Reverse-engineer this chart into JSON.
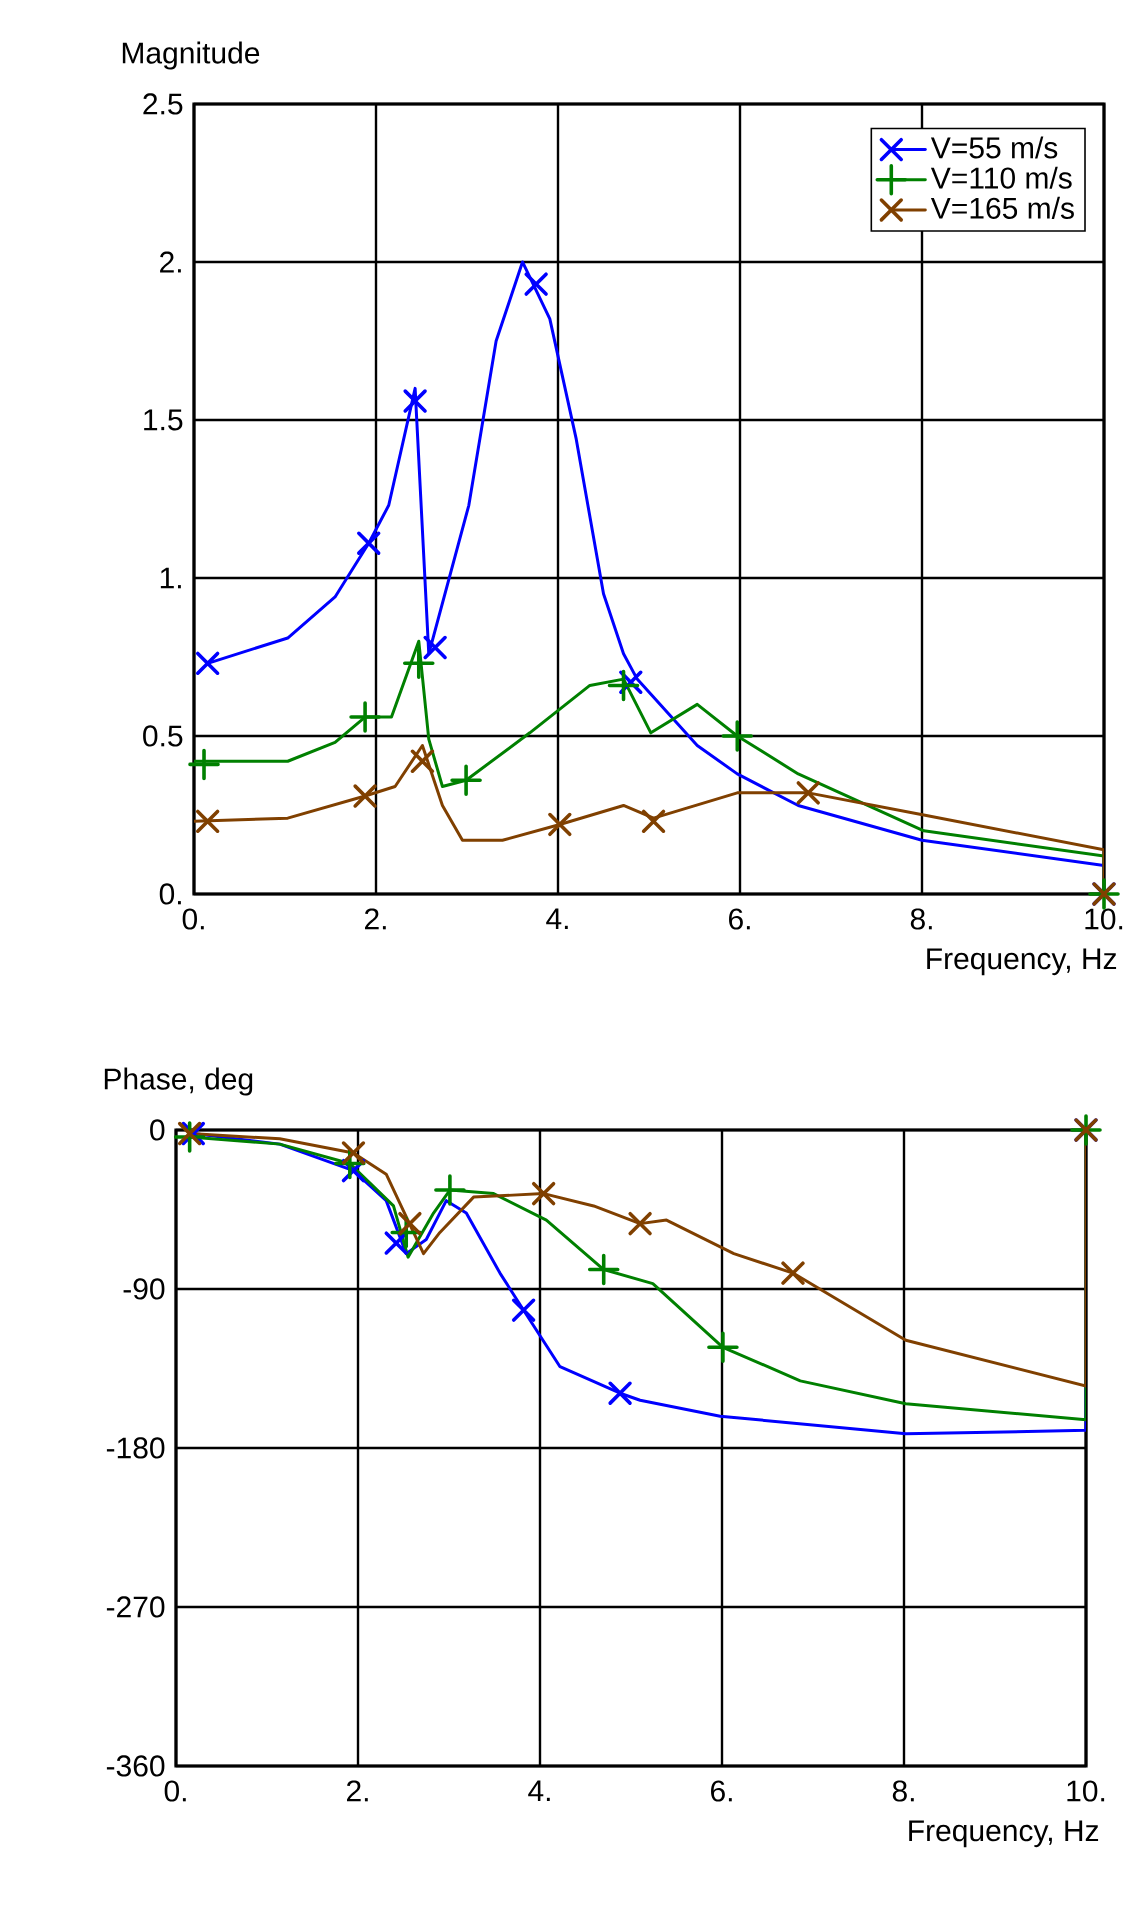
{
  "chart_data": [
    {
      "type": "line",
      "ylabel": "Magnitude",
      "xlabel": "Frequency, Hz",
      "xlim": [
        0,
        10
      ],
      "ylim": [
        0,
        2.5
      ],
      "xticks": [
        {
          "value": 0,
          "label": "0."
        },
        {
          "value": 2,
          "label": "2."
        },
        {
          "value": 4,
          "label": "4."
        },
        {
          "value": 6,
          "label": "6."
        },
        {
          "value": 8,
          "label": "8."
        },
        {
          "value": 10,
          "label": "10."
        }
      ],
      "yticks": [
        {
          "value": 0,
          "label": "0."
        },
        {
          "value": 0.5,
          "label": "0.5"
        },
        {
          "value": 1,
          "label": "1."
        },
        {
          "value": 1.5,
          "label": "1.5"
        },
        {
          "value": 2,
          "label": "2."
        },
        {
          "value": 2.5,
          "label": "2.5"
        }
      ],
      "grid": true,
      "legend": "top right",
      "series": [
        {
          "color": "#0000ff",
          "x": [
            0.15,
            1.03,
            1.55,
            1.92,
            2.14,
            2.43,
            2.58,
            3.02,
            3.32,
            3.61,
            3.91,
            4.2,
            4.5,
            4.72,
            4.87,
            5.53,
            5.97,
            6.64,
            8.0,
            10,
            10
          ],
          "values": [
            0.73,
            0.81,
            0.94,
            1.11,
            1.23,
            1.6,
            0.76,
            1.23,
            1.75,
            2.0,
            1.82,
            1.44,
            0.95,
            0.76,
            0.68,
            0.47,
            0.38,
            0.28,
            0.17,
            0.09,
            0
          ]
        },
        {
          "color": "#008000",
          "x": [
            0,
            1.03,
            1.55,
            1.88,
            2.17,
            2.47,
            2.58,
            2.73,
            2.99,
            3.69,
            4.35,
            4.72,
            5.02,
            5.53,
            5.97,
            6.64,
            8.02,
            10,
            10
          ],
          "values": [
            0.42,
            0.42,
            0.48,
            0.56,
            0.56,
            0.8,
            0.49,
            0.34,
            0.36,
            0.51,
            0.66,
            0.68,
            0.51,
            0.6,
            0.5,
            0.38,
            0.2,
            0.12,
            0
          ]
        },
        {
          "color": "#804000",
          "x": [
            0,
            1.03,
            1.88,
            2.21,
            2.51,
            2.73,
            2.95,
            3.39,
            4.02,
            4.72,
            5.05,
            5.97,
            6.75,
            8.02,
            10,
            10
          ],
          "values": [
            0.23,
            0.24,
            0.31,
            0.34,
            0.47,
            0.28,
            0.17,
            0.17,
            0.22,
            0.28,
            0.24,
            0.32,
            0.32,
            0.25,
            0.14,
            0
          ]
        },
        {
          "type": "scatter",
          "name": "V=55 m/s",
          "color": "#0000ff",
          "marker": "cross",
          "x": [
            0.15,
            1.92,
            2.43,
            2.65,
            3.76,
            4.8,
            10
          ],
          "values": [
            0.73,
            1.11,
            1.56,
            0.78,
            1.93,
            0.67,
            0
          ]
        },
        {
          "type": "scatter",
          "name": "V=110 m/s",
          "color": "#008000",
          "marker": "plus",
          "x": [
            0.11,
            1.88,
            2.47,
            2.99,
            4.72,
            5.97,
            10
          ],
          "values": [
            0.41,
            0.56,
            0.73,
            0.36,
            0.66,
            0.5,
            0
          ]
        },
        {
          "type": "scatter",
          "name": "V=165 m/s",
          "color": "#804000",
          "marker": "cross",
          "x": [
            0.15,
            1.88,
            2.51,
            4.02,
            5.05,
            6.75,
            10
          ],
          "values": [
            0.23,
            0.31,
            0.42,
            0.22,
            0.23,
            0.32,
            0
          ]
        }
      ]
    },
    {
      "type": "line",
      "ylabel": "Phase, deg",
      "xlabel": "Frequency, Hz",
      "xlim": [
        0,
        10
      ],
      "ylim": [
        -360,
        0
      ],
      "xticks": [
        {
          "value": 0,
          "label": "0."
        },
        {
          "value": 2,
          "label": "2."
        },
        {
          "value": 4,
          "label": "4."
        },
        {
          "value": 6,
          "label": "6."
        },
        {
          "value": 8,
          "label": "8."
        },
        {
          "value": 10,
          "label": "10."
        }
      ],
      "yticks": [
        -360,
        -270,
        -180,
        -90,
        0
      ],
      "grid": true,
      "series": [
        {
          "color": "#0000ff",
          "x": [
            0.19,
            1.14,
            1.95,
            2.31,
            2.53,
            2.75,
            2.97,
            3.19,
            3.56,
            3.82,
            4.22,
            4.88,
            5.1,
            5.98,
            8.02,
            10,
            10
          ],
          "values": [
            -2,
            -8,
            -23,
            -40,
            -70,
            -62,
            -40,
            -47,
            -81,
            -102,
            -134,
            -149,
            -153,
            -162,
            -172,
            -170,
            0
          ]
        },
        {
          "color": "#008000",
          "x": [
            0.15,
            1.14,
            1.91,
            2.39,
            2.55,
            2.83,
            3.01,
            3.49,
            4.07,
            4.7,
            5.24,
            6.01,
            6.86,
            8.02,
            10,
            10
          ],
          "values": [
            -4,
            -8,
            -19,
            -43,
            -72,
            -47,
            -34,
            -36,
            -51,
            -79,
            -87,
            -123,
            -142,
            -155,
            -164,
            0
          ]
        },
        {
          "color": "#804000",
          "x": [
            0.15,
            1.14,
            1.95,
            2.31,
            2.72,
            2.9,
            3.27,
            4.04,
            4.59,
            5.1,
            5.39,
            6.13,
            6.78,
            8.02,
            10,
            10
          ],
          "values": [
            -2,
            -5,
            -13,
            -25,
            -70,
            -58,
            -38,
            -36,
            -43,
            -53,
            -51,
            -70,
            -81,
            -119,
            -145,
            0
          ]
        },
        {
          "type": "scatter",
          "color": "#0000ff",
          "marker": "cross",
          "x": [
            0.19,
            1.95,
            2.42,
            3.82,
            4.88,
            10
          ],
          "values": [
            -2,
            -23,
            -64,
            -102,
            -149,
            0
          ]
        },
        {
          "type": "scatter",
          "color": "#008000",
          "marker": "plus",
          "x": [
            0.15,
            1.91,
            2.53,
            3.01,
            4.7,
            6.01,
            10
          ],
          "values": [
            -4,
            -19,
            -58,
            -34,
            -79,
            -123,
            0
          ]
        },
        {
          "type": "scatter",
          "color": "#804000",
          "marker": "cross",
          "x": [
            0.15,
            1.95,
            2.57,
            4.04,
            5.1,
            6.78,
            10
          ],
          "values": [
            -2,
            -13,
            -53,
            -36,
            -53,
            -81,
            0
          ]
        }
      ]
    }
  ]
}
